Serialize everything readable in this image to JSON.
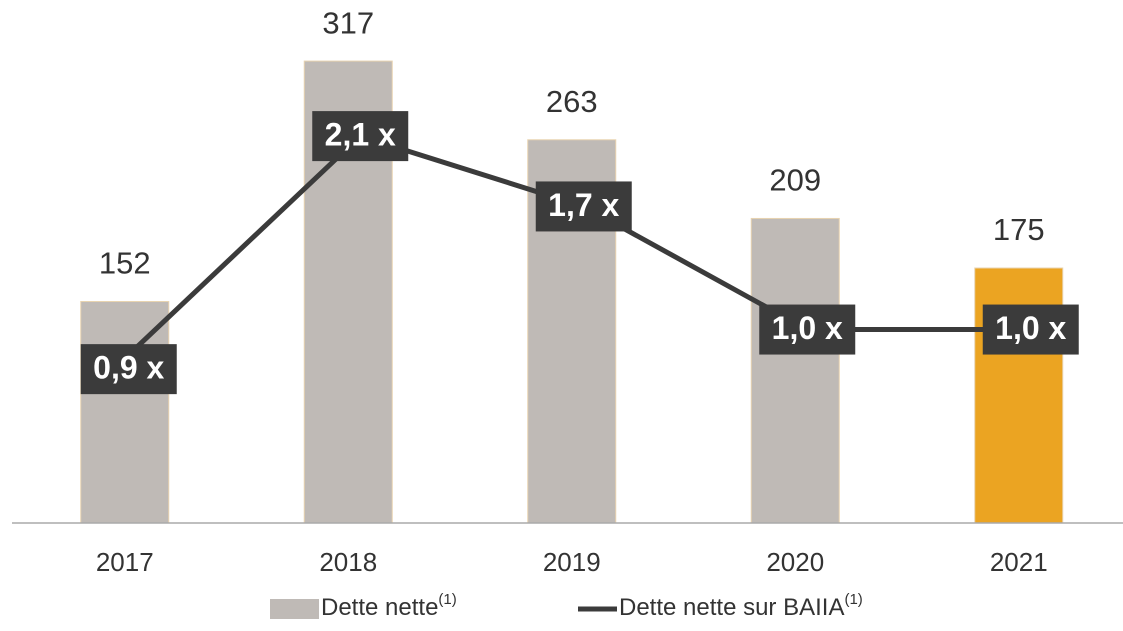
{
  "chart_data": {
    "type": "bar_line",
    "categories": [
      "2017",
      "2018",
      "2019",
      "2020",
      "2021"
    ],
    "ylim": [
      0,
      350
    ],
    "y2lim": [
      -0.1,
      2.8
    ],
    "series": [
      {
        "name": "Dette nette",
        "superscript": "(1)",
        "type": "bar",
        "color": "#bfbab6",
        "colors": [
          "#bfbab6",
          "#bfbab6",
          "#bfbab6",
          "#bfbab6",
          "#eba422"
        ],
        "values": [
          152,
          317,
          263,
          209,
          175
        ]
      },
      {
        "name": "Dette nette sur BAIIA",
        "superscript": "(1)",
        "type": "line",
        "axis": "y2",
        "color": "#3b3b3b",
        "values": [
          0.9,
          2.1,
          1.7,
          1.0,
          1.0
        ],
        "value_labels": [
          "0,9 x",
          "2,1 x",
          "1,7 x",
          "1,0 x",
          "1,0 x"
        ]
      }
    ]
  }
}
